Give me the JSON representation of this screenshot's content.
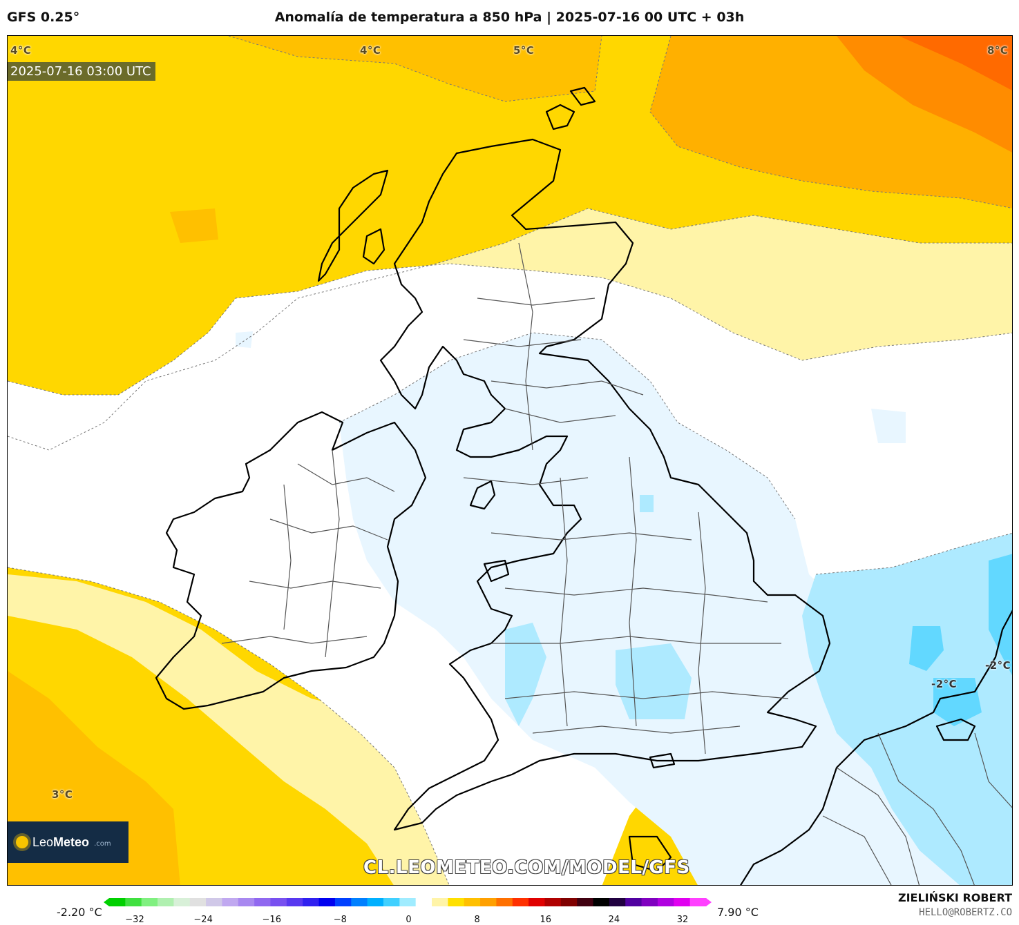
{
  "header": {
    "model": "GFS 0.25°",
    "title": "Anomalía de temperatura a 850 hPa | 2025-07-16 00 UTC + 03h"
  },
  "map": {
    "valid_time": "2025-07-16 03:00 UTC",
    "watermark": "CL.LEOMETEO.COM/MODEL/GFS",
    "contour_labels": {
      "nw": "4°C",
      "n": "4°C",
      "ne": "5°C",
      "far_ne": "8°C",
      "sw": "3°C",
      "e1": "-2°C",
      "e2": "-2°C"
    },
    "colors": {
      "warm_dark": "#ffa500",
      "warm": "#ffd700",
      "warm_light": "#fff4a8",
      "neutral": "#ffffff",
      "cool_light": "#e8f6ff",
      "cool": "#aeeaff",
      "cool_dark": "#62d8ff"
    }
  },
  "logo": {
    "brand_light": "Leo",
    "brand_bold": "Meteo",
    "suffix": ".com"
  },
  "colorbar": {
    "min_label": "-2.20 °C",
    "max_label": "7.90 °C",
    "ticks": [
      "−32",
      "−24",
      "−16",
      "−8",
      "0",
      "8",
      "16",
      "24",
      "32"
    ],
    "colors": [
      "#00d000",
      "#40e040",
      "#80f080",
      "#b0f0b0",
      "#d8f0d8",
      "#e0e0e0",
      "#d0c8e8",
      "#c0a8f0",
      "#a888f0",
      "#9068f0",
      "#7850f0",
      "#5838f0",
      "#3020f0",
      "#0000f0",
      "#0040ff",
      "#0080ff",
      "#00b0ff",
      "#40d0ff",
      "#a0ecff",
      "#ffffff",
      "#fff4a8",
      "#ffe000",
      "#ffc000",
      "#ffa000",
      "#ff7000",
      "#ff3000",
      "#e00000",
      "#b00000",
      "#800000",
      "#400010",
      "#000000",
      "#200040",
      "#5000a0",
      "#8000c0",
      "#b000e0",
      "#e000f0",
      "#ff40ff"
    ]
  },
  "credit": {
    "author": "ZIELIŃSKI ROBERT",
    "email": "HELLO@ROBERTZ.CO"
  }
}
